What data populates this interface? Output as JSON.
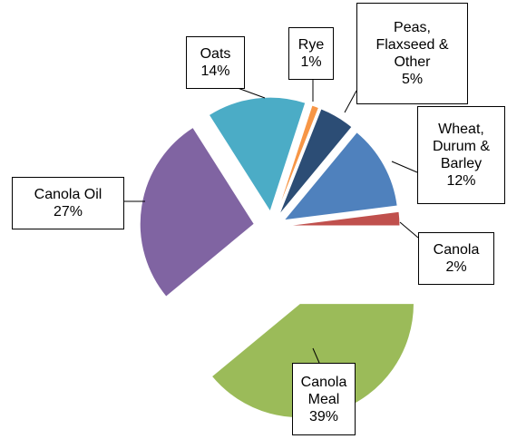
{
  "chart_data": {
    "type": "pie",
    "categories": [
      "Rye",
      "Peas, Flaxseed & Other",
      "Wheat, Durum & Barley",
      "Canola",
      "Canola Meal",
      "Canola Oil",
      "Oats"
    ],
    "values": [
      1,
      5,
      12,
      2,
      39,
      27,
      14
    ],
    "value_labels": [
      "1%",
      "5%",
      "12%",
      "2%",
      "39%",
      "27%",
      "14%"
    ],
    "colors": [
      "#f79646",
      "#2c4d75",
      "#4f81bd",
      "#c0504d",
      "#9bbb59",
      "#8064a2",
      "#4bacc6"
    ]
  }
}
